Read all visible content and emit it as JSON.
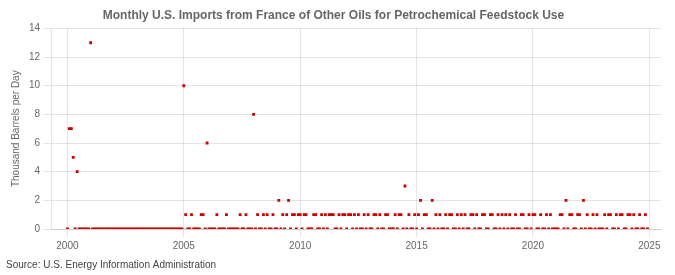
{
  "chart_data": {
    "type": "scatter",
    "title": "Monthly U.S. Imports from France of Other Oils for Petrochemical Feedstock Use",
    "y_label": "Thousand Barrels per Day",
    "annotations": [
      "Source: U.S. Energy Information Administration"
    ],
    "color": "#cc0000",
    "marker": "square",
    "grid": true,
    "xlim": [
      1999.3,
      2025.5
    ],
    "xticks": [
      2000,
      2005,
      2010,
      2015,
      2020,
      2025
    ],
    "ylim": [
      0,
      14
    ],
    "yticks": [
      0,
      2,
      4,
      6,
      8,
      10,
      12,
      14
    ],
    "x": [
      2000.08,
      2000.17,
      2000.25,
      2000.42,
      2001.0,
      2005.0,
      2005.08,
      2005.33,
      2005.75,
      2005.83,
      2006.0,
      2006.42,
      2006.83,
      2007.42,
      2007.67,
      2008.0,
      2008.17,
      2008.42,
      2008.58,
      2008.83,
      2009.08,
      2009.25,
      2009.42,
      2009.5,
      2009.67,
      2009.75,
      2009.92,
      2010.0,
      2010.17,
      2010.25,
      2010.58,
      2010.67,
      2010.92,
      2011.08,
      2011.25,
      2011.33,
      2011.42,
      2011.67,
      2011.83,
      2011.92,
      2012.08,
      2012.17,
      2012.33,
      2012.5,
      2012.75,
      2012.92,
      2013.17,
      2013.25,
      2013.42,
      2013.67,
      2013.75,
      2014.08,
      2014.25,
      2014.33,
      2014.5,
      2014.67,
      2014.92,
      2015.08,
      2015.17,
      2015.33,
      2015.42,
      2015.67,
      2015.83,
      2016.0,
      2016.25,
      2016.42,
      2016.5,
      2016.75,
      2016.92,
      2017.08,
      2017.33,
      2017.42,
      2017.58,
      2017.83,
      2017.92,
      2018.17,
      2018.25,
      2018.5,
      2018.67,
      2018.83,
      2019.0,
      2019.25,
      2019.5,
      2019.58,
      2019.83,
      2020.0,
      2020.08,
      2020.33,
      2020.58,
      2020.75,
      2021.17,
      2021.25,
      2021.42,
      2021.58,
      2021.67,
      2021.92,
      2022.0,
      2022.17,
      2022.33,
      2022.58,
      2022.75,
      2023.08,
      2023.25,
      2023.33,
      2023.58,
      2023.75,
      2023.83,
      2024.08,
      2024.17,
      2024.33,
      2024.58,
      2024.83,
      2000.0,
      2000.33,
      2000.5,
      2000.58,
      2000.67,
      2000.75,
      2000.83,
      2000.92,
      2001.08,
      2001.17,
      2001.25,
      2001.33,
      2001.42,
      2001.5,
      2001.58,
      2001.67,
      2001.75,
      2001.83,
      2001.92,
      2002.0,
      2002.08,
      2002.17,
      2002.25,
      2002.33,
      2002.42,
      2002.5,
      2002.58,
      2002.67,
      2002.75,
      2002.83,
      2002.92,
      2003.0,
      2003.08,
      2003.17,
      2003.25,
      2003.33,
      2003.42,
      2003.5,
      2003.58,
      2003.67,
      2003.75,
      2003.83,
      2003.92,
      2004.0,
      2004.08,
      2004.17,
      2004.25,
      2004.33,
      2004.42,
      2004.5,
      2004.58,
      2004.67,
      2004.75,
      2004.83,
      2004.92,
      2005.17,
      2005.25,
      2005.42,
      2005.5,
      2005.58,
      2005.67,
      2005.92,
      2006.08,
      2006.17,
      2006.25,
      2006.33,
      2006.5,
      2006.58,
      2006.67,
      2006.75,
      2006.92,
      2007.0,
      2007.08,
      2007.17,
      2007.25,
      2007.33,
      2007.5,
      2007.58,
      2007.75,
      2007.83,
      2007.92,
      2008.08,
      2008.25,
      2008.33,
      2008.5,
      2008.67,
      2008.75,
      2008.92,
      2009.0,
      2009.17,
      2009.33,
      2009.58,
      2009.83,
      2010.08,
      2010.33,
      2010.42,
      2010.5,
      2010.75,
      2010.83,
      2011.0,
      2011.17,
      2011.5,
      2011.58,
      2011.75,
      2012.0,
      2012.25,
      2012.42,
      2012.58,
      2012.67,
      2012.83,
      2013.0,
      2013.08,
      2013.33,
      2013.5,
      2013.58,
      2013.83,
      2013.92,
      2014.0,
      2014.17,
      2014.42,
      2014.58,
      2014.75,
      2014.83,
      2015.0,
      2015.25,
      2015.5,
      2015.58,
      2015.75,
      2015.92,
      2016.08,
      2016.17,
      2016.33,
      2016.58,
      2016.67,
      2016.83,
      2017.0,
      2017.17,
      2017.25,
      2017.5,
      2017.67,
      2017.75,
      2018.0,
      2018.08,
      2018.33,
      2018.42,
      2018.58,
      2018.75,
      2018.92,
      2019.08,
      2019.17,
      2019.33,
      2019.42,
      2019.67,
      2019.75,
      2019.92,
      2020.17,
      2020.25,
      2020.42,
      2020.5,
      2020.67,
      2020.83,
      2020.92,
      2021.0,
      2021.08,
      2021.33,
      2021.5,
      2021.75,
      2021.83,
      2022.08,
      2022.25,
      2022.42,
      2022.5,
      2022.67,
      2022.83,
      2022.92,
      2023.0,
      2023.17,
      2023.42,
      2023.5,
      2023.67,
      2023.92,
      2024.0,
      2024.25,
      2024.42,
      2024.5,
      2024.67,
      2024.75,
      2024.92
    ],
    "values": [
      7,
      7,
      5,
      4,
      13,
      10,
      1,
      1,
      1,
      1,
      6,
      1,
      1,
      1,
      1,
      8,
      1,
      1,
      1,
      1,
      2,
      1,
      1,
      2,
      1,
      1,
      1,
      1,
      1,
      1,
      1,
      1,
      1,
      1,
      1,
      1,
      1,
      1,
      1,
      1,
      1,
      1,
      1,
      1,
      1,
      1,
      1,
      1,
      1,
      1,
      1,
      1,
      1,
      1,
      3,
      1,
      1,
      1,
      2,
      1,
      1,
      2,
      1,
      1,
      1,
      1,
      1,
      1,
      1,
      1,
      1,
      1,
      1,
      1,
      1,
      1,
      1,
      1,
      1,
      1,
      1,
      1,
      1,
      1,
      1,
      1,
      1,
      1,
      1,
      1,
      1,
      1,
      2,
      1,
      1,
      1,
      1,
      2,
      1,
      1,
      1,
      1,
      1,
      1,
      1,
      1,
      1,
      1,
      1,
      1,
      1,
      1,
      0,
      0,
      0,
      0,
      0,
      0,
      0,
      0,
      0,
      0,
      0,
      0,
      0,
      0,
      0,
      0,
      0,
      0,
      0,
      0,
      0,
      0,
      0,
      0,
      0,
      0,
      0,
      0,
      0,
      0,
      0,
      0,
      0,
      0,
      0,
      0,
      0,
      0,
      0,
      0,
      0,
      0,
      0,
      0,
      0,
      0,
      0,
      0,
      0,
      0,
      0,
      0,
      0,
      0,
      0,
      0,
      0,
      0,
      0,
      0,
      0,
      0,
      0,
      0,
      0,
      0,
      0,
      0,
      0,
      0,
      0,
      0,
      0,
      0,
      0,
      0,
      0,
      0,
      0,
      0,
      0,
      0,
      0,
      0,
      0,
      0,
      0,
      0,
      0,
      0,
      0,
      0,
      0,
      0,
      0,
      0,
      0,
      0,
      0,
      0,
      0,
      0,
      0,
      0,
      0,
      0,
      0,
      0,
      0,
      0,
      0,
      0,
      0,
      0,
      0,
      0,
      0,
      0,
      0,
      0,
      0,
      0,
      0,
      0,
      0,
      0,
      0,
      0,
      0,
      0,
      0,
      0,
      0,
      0,
      0,
      0,
      0,
      0,
      0,
      0,
      0,
      0,
      0,
      0,
      0,
      0,
      0,
      0,
      0,
      0,
      0,
      0,
      0,
      0,
      0,
      0,
      0,
      0,
      0,
      0,
      0,
      0,
      0,
      0,
      0,
      0,
      0,
      0,
      0,
      0,
      0,
      0,
      0,
      0,
      0,
      0,
      0,
      0,
      0,
      0,
      0,
      0,
      0,
      0,
      0,
      0,
      0,
      0
    ]
  }
}
